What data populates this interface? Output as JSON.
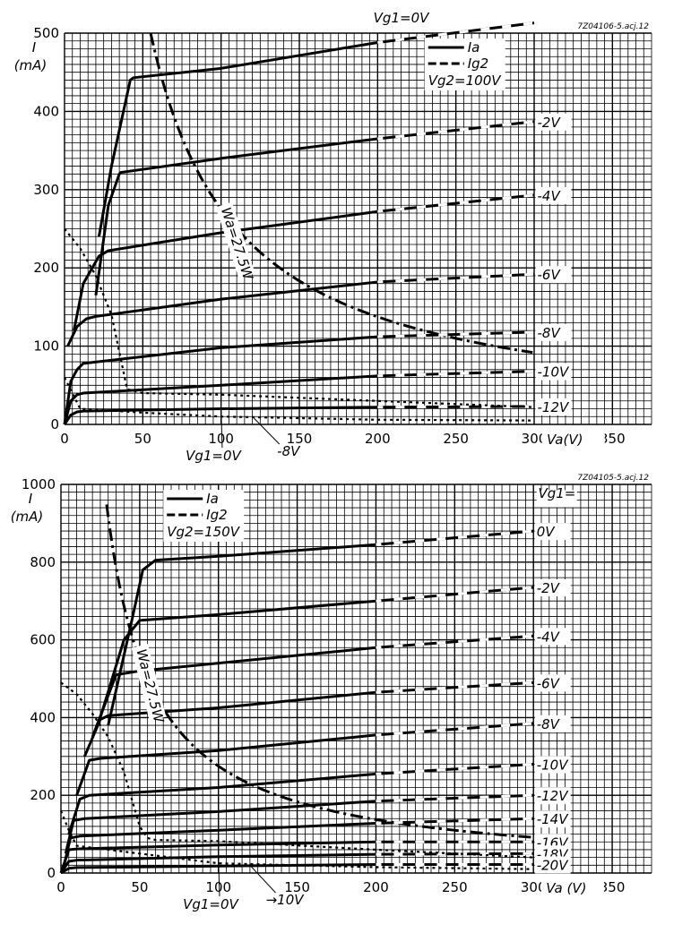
{
  "chart_data": [
    {
      "type": "line",
      "code": "7Z04106-5.acj.12",
      "xlabel": "Va(V)",
      "ylabel": "I",
      "ylabel_unit": "(mA)",
      "xlim": [
        0,
        375
      ],
      "ylim": [
        0,
        500
      ],
      "x_ticks": [
        "0",
        "50",
        "100",
        "150",
        "200",
        "250",
        "300",
        "350"
      ],
      "y_ticks": [
        "0",
        "100",
        "200",
        "300",
        "400",
        "500"
      ],
      "grid": true,
      "legend": {
        "position": "top-right",
        "solid": "Ia",
        "dashed": "Ig2",
        "condition": "Vg2=100V"
      },
      "top_label": "Vg1=0V",
      "power_label": "Wa=27.5W",
      "bottom_labels": [
        "Vg1=0V",
        "-8V"
      ],
      "power_hyperbola_W": 27.5,
      "series": [
        {
          "name": "Vg1=0V",
          "kind": "Ia",
          "label": "",
          "x": [
            22,
            30,
            42,
            44,
            100,
            200,
            300
          ],
          "y": [
            240,
            330,
            440,
            443,
            455,
            488,
            513
          ]
        },
        {
          "name": "Vg1=-2V",
          "kind": "Ia",
          "label": "-2V",
          "x": [
            20,
            28,
            35,
            36,
            100,
            200,
            300
          ],
          "y": [
            165,
            280,
            320,
            322,
            340,
            365,
            387
          ]
        },
        {
          "name": "Vg1=-4V",
          "kind": "Ia",
          "label": "-4V",
          "x": [
            6,
            12,
            22,
            28,
            100,
            200,
            300
          ],
          "y": [
            120,
            180,
            215,
            222,
            245,
            272,
            293
          ]
        },
        {
          "name": "Vg1=-6V",
          "kind": "Ia",
          "label": "-6V",
          "x": [
            2,
            8,
            14,
            20,
            100,
            200,
            300
          ],
          "y": [
            100,
            125,
            135,
            138,
            160,
            182,
            192
          ]
        },
        {
          "name": "Vg1=-8V",
          "kind": "Ia",
          "label": "-8V",
          "x": [
            0,
            4,
            8,
            12,
            100,
            200,
            300
          ],
          "y": [
            0,
            55,
            70,
            78,
            98,
            112,
            118
          ]
        },
        {
          "name": "Vg1=-10V",
          "kind": "Ia",
          "label": "-10V",
          "x": [
            0,
            4,
            8,
            12,
            100,
            200,
            300
          ],
          "y": [
            0,
            30,
            38,
            40,
            50,
            62,
            68
          ]
        },
        {
          "name": "Vg1=-12V",
          "kind": "Ia",
          "label": "-12V",
          "x": [
            0,
            4,
            8,
            12,
            100,
            200,
            300
          ],
          "y": [
            0,
            12,
            16,
            17,
            20,
            22,
            23
          ]
        },
        {
          "name": "Ig2 Vg1=0V",
          "kind": "Ig2",
          "label": "",
          "x": [
            0,
            10,
            20,
            30,
            40,
            50,
            100,
            200,
            300
          ],
          "y": [
            250,
            225,
            190,
            140,
            45,
            40,
            38,
            30,
            22
          ]
        },
        {
          "name": "Ig2 Vg1=-8V",
          "kind": "Ig2",
          "label": "",
          "x": [
            0,
            10,
            50,
            100,
            200,
            300
          ],
          "y": [
            60,
            20,
            15,
            10,
            6,
            5
          ]
        }
      ]
    },
    {
      "type": "line",
      "code": "7Z04105-5.acj.12",
      "xlabel": "Va (V)",
      "ylabel": "I",
      "ylabel_unit": "(mA)",
      "xlim": [
        0,
        375
      ],
      "ylim": [
        0,
        1000
      ],
      "x_ticks": [
        "0",
        "50",
        "100",
        "150",
        "200",
        "250",
        "300",
        "350"
      ],
      "y_ticks": [
        "0",
        "200",
        "400",
        "600",
        "800",
        "1000"
      ],
      "grid": true,
      "legend": {
        "position": "top-left",
        "solid": "Ia",
        "dashed": "Ig2",
        "condition": "Vg2=150V"
      },
      "top_label": "Vg1=",
      "power_label": "Wa=27.5W",
      "bottom_labels": [
        "Vg1=0V",
        "→10V"
      ],
      "power_hyperbola_W": 27.5,
      "series": [
        {
          "name": "Vg1=0V",
          "kind": "Ia",
          "label": "0V",
          "x": [
            30,
            45,
            52,
            60,
            100,
            200,
            300
          ],
          "y": [
            380,
            650,
            780,
            805,
            815,
            845,
            880
          ]
        },
        {
          "name": "Vg1=-2V",
          "kind": "Ia",
          "label": "-2V",
          "x": [
            25,
            40,
            50,
            100,
            200,
            300
          ],
          "y": [
            400,
            600,
            650,
            665,
            700,
            735
          ]
        },
        {
          "name": "Vg1=-4V",
          "kind": "Ia",
          "label": "-4V",
          "x": [
            20,
            35,
            50,
            100,
            200,
            300
          ],
          "y": [
            350,
            510,
            520,
            540,
            580,
            610
          ]
        },
        {
          "name": "Vg1=-6V",
          "kind": "Ia",
          "label": "-6V",
          "x": [
            15,
            25,
            30,
            100,
            200,
            300
          ],
          "y": [
            300,
            395,
            405,
            425,
            465,
            490
          ]
        },
        {
          "name": "Vg1=-8V",
          "kind": "Ia",
          "label": "-8V",
          "x": [
            10,
            18,
            25,
            100,
            200,
            300
          ],
          "y": [
            200,
            290,
            295,
            315,
            355,
            385
          ]
        },
        {
          "name": "Vg1=-10V",
          "kind": "Ia",
          "label": "-10V",
          "x": [
            5,
            12,
            18,
            100,
            200,
            300
          ],
          "y": [
            100,
            190,
            200,
            220,
            255,
            280
          ]
        },
        {
          "name": "Vg1=-12V",
          "kind": "Ia",
          "label": "-12V",
          "x": [
            3,
            8,
            15,
            100,
            200,
            300
          ],
          "y": [
            50,
            135,
            140,
            158,
            185,
            200
          ]
        },
        {
          "name": "Vg1=-14V",
          "kind": "Ia",
          "label": "-14V",
          "x": [
            2,
            6,
            12,
            100,
            200,
            300
          ],
          "y": [
            20,
            90,
            95,
            110,
            128,
            140
          ]
        },
        {
          "name": "Vg1=-16V",
          "kind": "Ia",
          "label": "-16V",
          "x": [
            0,
            5,
            10,
            100,
            200,
            300
          ],
          "y": [
            0,
            60,
            62,
            72,
            80,
            80
          ]
        },
        {
          "name": "Vg1=-18V",
          "kind": "Ia",
          "label": "-18V",
          "x": [
            0,
            5,
            10,
            100,
            200,
            300
          ],
          "y": [
            0,
            30,
            33,
            42,
            48,
            50
          ]
        },
        {
          "name": "Vg1=-20V",
          "kind": "Ia",
          "label": "-20V",
          "x": [
            0,
            5,
            10,
            100,
            200,
            300
          ],
          "y": [
            0,
            12,
            14,
            18,
            22,
            22
          ]
        },
        {
          "name": "Ig2 Vg1=0V",
          "kind": "Ig2",
          "label": "",
          "x": [
            0,
            10,
            20,
            30,
            40,
            50,
            55,
            60,
            100,
            200,
            300
          ],
          "y": [
            490,
            460,
            410,
            350,
            260,
            120,
            90,
            85,
            82,
            60,
            40
          ]
        },
        {
          "name": "Ig2 Vg1=-10V",
          "kind": "Ig2",
          "label": "",
          "x": [
            0,
            5,
            10,
            100,
            200,
            300
          ],
          "y": [
            160,
            110,
            70,
            25,
            15,
            10
          ]
        }
      ]
    }
  ]
}
